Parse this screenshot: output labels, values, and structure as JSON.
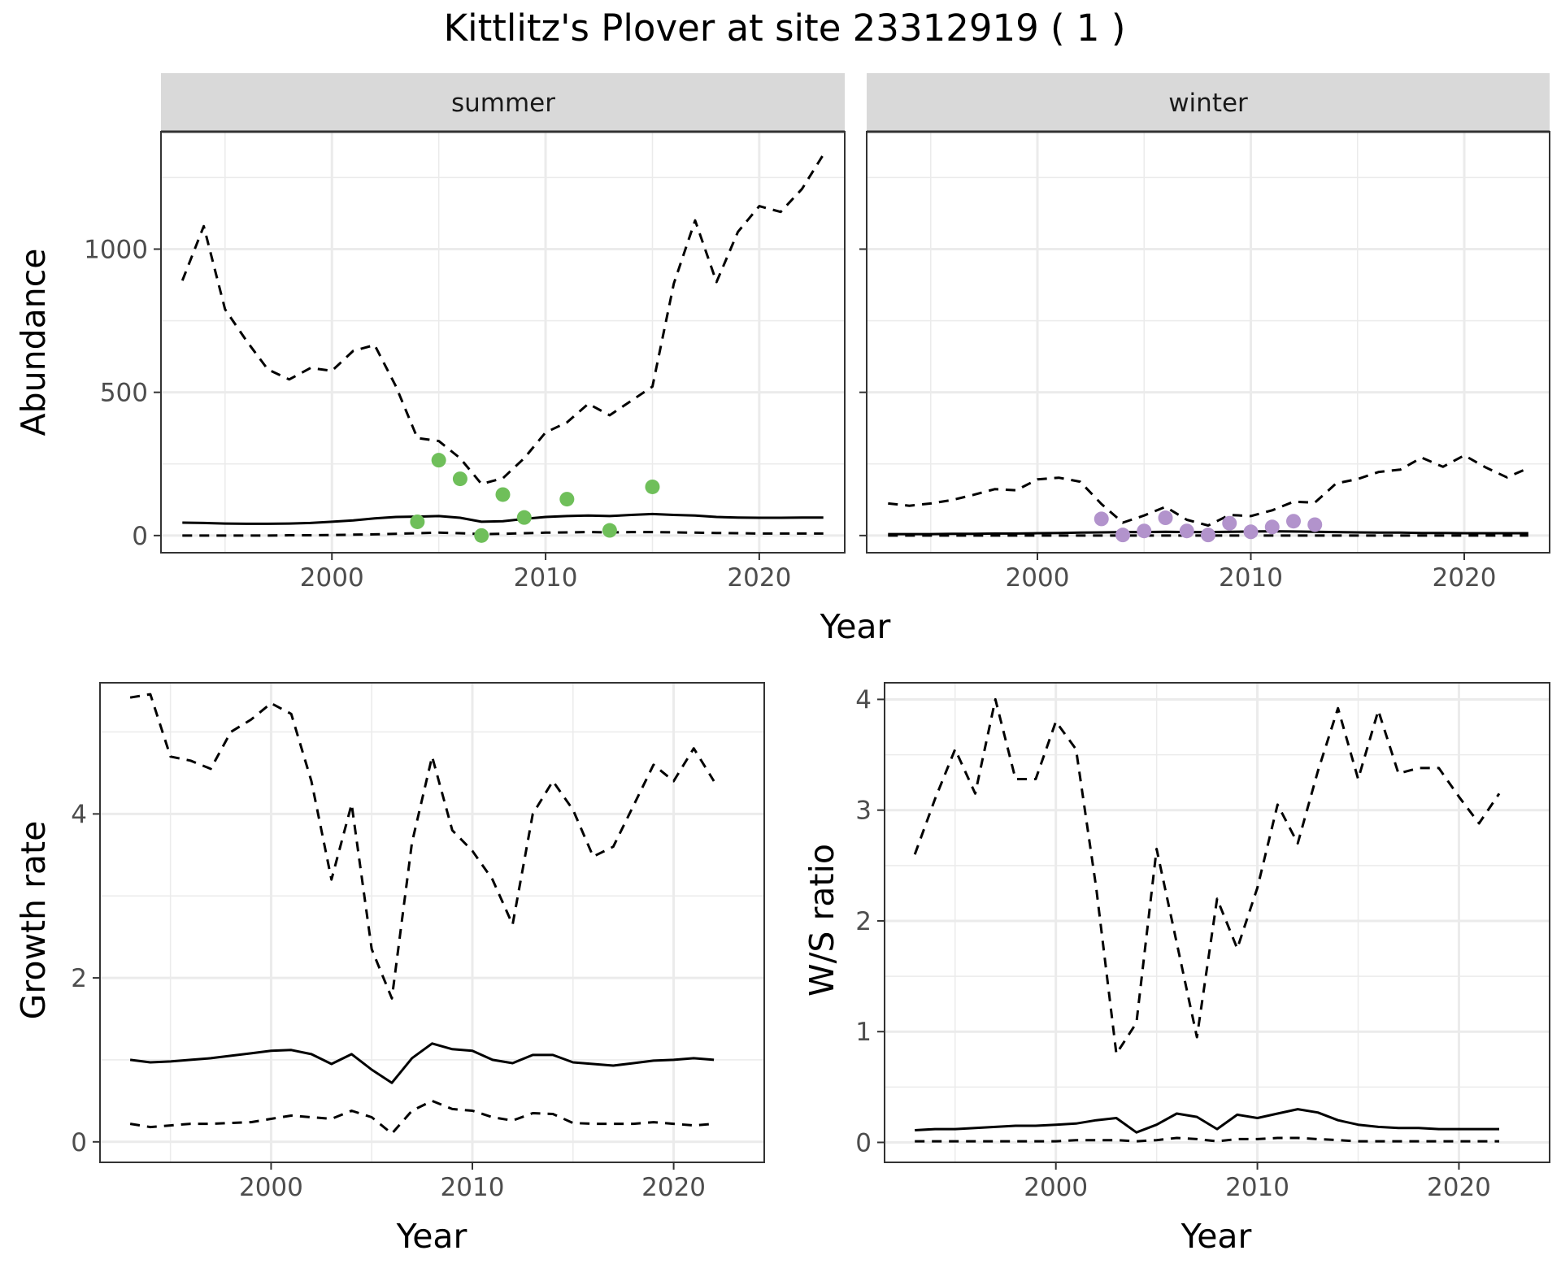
{
  "title": "Kittlitz's Plover at site 23312919 ( 1 )",
  "colors": {
    "summer_points": "#6fbf5a",
    "winter_points": "#b293cc",
    "line": "#000000",
    "strip_bg": "#d9d9d9",
    "grid": "#ebebeb"
  },
  "chart_data": [
    {
      "id": "abundance-summer",
      "type": "line",
      "facet": "summer",
      "xlabel": "Year",
      "ylabel": "Abundance",
      "xlim": [
        1992,
        2024
      ],
      "ylim": [
        -60,
        1410
      ],
      "xticks": [
        2000,
        2010,
        2020
      ],
      "yticks": [
        0,
        500,
        1000
      ],
      "grid": true,
      "x": [
        1993,
        1994,
        1995,
        1996,
        1997,
        1998,
        1999,
        2000,
        2001,
        2002,
        2003,
        2004,
        2005,
        2006,
        2007,
        2008,
        2009,
        2010,
        2011,
        2012,
        2013,
        2014,
        2015,
        2016,
        2017,
        2018,
        2019,
        2020,
        2021,
        2022,
        2023
      ],
      "series": [
        {
          "style": "dashed",
          "values": [
            890,
            1080,
            790,
            680,
            580,
            545,
            585,
            575,
            645,
            665,
            520,
            340,
            330,
            270,
            180,
            200,
            270,
            360,
            395,
            460,
            420,
            470,
            520,
            880,
            1100,
            885,
            1060,
            1150,
            1130,
            1210,
            1330
          ]
        },
        {
          "style": "solid",
          "values": [
            45,
            44,
            42,
            41,
            41,
            42,
            44,
            48,
            53,
            60,
            65,
            66,
            68,
            62,
            48,
            50,
            58,
            65,
            68,
            70,
            68,
            72,
            75,
            72,
            70,
            65,
            63,
            62,
            62,
            63,
            63
          ]
        },
        {
          "style": "dashed",
          "values": [
            0,
            0,
            0,
            0,
            0,
            1,
            1,
            2,
            3,
            4,
            6,
            8,
            10,
            8,
            5,
            6,
            8,
            10,
            11,
            12,
            11,
            12,
            12,
            11,
            10,
            9,
            8,
            7,
            7,
            7,
            7
          ]
        }
      ],
      "points": {
        "x": [
          2004,
          2005,
          2006,
          2007,
          2008,
          2009,
          2011,
          2013,
          2015
        ],
        "values": [
          48,
          263,
          198,
          0,
          143,
          63,
          127,
          18,
          170
        ]
      }
    },
    {
      "id": "abundance-winter",
      "type": "line",
      "facet": "winter",
      "xlabel": "Year",
      "ylabel": "Abundance",
      "xlim": [
        1992,
        2024
      ],
      "ylim": [
        -60,
        1410
      ],
      "xticks": [
        2000,
        2010,
        2020
      ],
      "yticks": [
        0,
        500,
        1000
      ],
      "grid": true,
      "x": [
        1993,
        1994,
        1995,
        1996,
        1997,
        1998,
        1999,
        2000,
        2001,
        2002,
        2003,
        2004,
        2005,
        2006,
        2007,
        2008,
        2009,
        2010,
        2011,
        2012,
        2013,
        2014,
        2015,
        2016,
        2017,
        2018,
        2019,
        2020,
        2021,
        2022,
        2023
      ],
      "series": [
        {
          "style": "dashed",
          "values": [
            112,
            104,
            112,
            124,
            142,
            162,
            158,
            196,
            202,
            188,
            110,
            45,
            70,
            100,
            55,
            35,
            72,
            68,
            88,
            118,
            115,
            182,
            197,
            222,
            230,
            272,
            240,
            280,
            238,
            203,
            235
          ]
        },
        {
          "style": "solid",
          "values": [
            5,
            5,
            5,
            6,
            6,
            7,
            7,
            8,
            9,
            10,
            11,
            12,
            12,
            13,
            12,
            12,
            13,
            14,
            15,
            14,
            13,
            12,
            11,
            10,
            10,
            9,
            9,
            8,
            8,
            8,
            8
          ]
        },
        {
          "style": "dashed",
          "values": [
            0,
            0,
            0,
            0,
            0,
            0,
            0,
            0,
            0,
            0,
            0,
            0,
            0,
            0,
            0,
            0,
            0,
            0,
            0,
            0,
            0,
            0,
            0,
            0,
            0,
            0,
            0,
            0,
            0,
            0,
            0
          ]
        }
      ],
      "points": {
        "x": [
          2003,
          2004,
          2005,
          2006,
          2007,
          2008,
          2009,
          2010,
          2011,
          2012,
          2013
        ],
        "values": [
          58,
          2,
          16,
          62,
          16,
          2,
          43,
          13,
          30,
          50,
          38
        ]
      }
    },
    {
      "id": "growth-rate",
      "type": "line",
      "xlabel": "Year",
      "ylabel": "Growth rate",
      "xlim": [
        1991.5,
        2024.5
      ],
      "ylim": [
        -0.25,
        5.6
      ],
      "xticks": [
        2000,
        2010,
        2020
      ],
      "yticks": [
        0,
        2,
        4
      ],
      "grid": true,
      "x": [
        1993,
        1994,
        1995,
        1996,
        1997,
        1998,
        1999,
        2000,
        2001,
        2002,
        2003,
        2004,
        2005,
        2006,
        2007,
        2008,
        2009,
        2010,
        2011,
        2012,
        2013,
        2014,
        2015,
        2016,
        2017,
        2018,
        2019,
        2020,
        2021,
        2022
      ],
      "series": [
        {
          "style": "dashed",
          "values": [
            5.42,
            5.46,
            4.7,
            4.65,
            4.55,
            5.0,
            5.15,
            5.35,
            5.22,
            4.4,
            3.2,
            4.12,
            2.35,
            1.75,
            3.65,
            4.7,
            3.8,
            3.55,
            3.2,
            2.65,
            4.0,
            4.4,
            4.05,
            3.48,
            3.6,
            4.1,
            4.6,
            4.4,
            4.8,
            4.4
          ]
        },
        {
          "style": "solid",
          "values": [
            1.0,
            0.97,
            0.98,
            1.0,
            1.02,
            1.05,
            1.08,
            1.11,
            1.12,
            1.07,
            0.95,
            1.07,
            0.88,
            0.72,
            1.02,
            1.2,
            1.13,
            1.11,
            1.0,
            0.96,
            1.06,
            1.06,
            0.97,
            0.95,
            0.93,
            0.96,
            0.99,
            1.0,
            1.02,
            1.0
          ]
        },
        {
          "style": "dashed",
          "values": [
            0.22,
            0.18,
            0.2,
            0.22,
            0.22,
            0.23,
            0.24,
            0.28,
            0.32,
            0.3,
            0.28,
            0.38,
            0.3,
            0.1,
            0.38,
            0.5,
            0.4,
            0.38,
            0.3,
            0.26,
            0.35,
            0.34,
            0.23,
            0.22,
            0.22,
            0.22,
            0.24,
            0.22,
            0.2,
            0.22
          ]
        }
      ]
    },
    {
      "id": "ws-ratio",
      "type": "line",
      "xlabel": "Year",
      "ylabel": "W/S ratio",
      "xlim": [
        1991.5,
        2024.5
      ],
      "ylim": [
        -0.18,
        4.15
      ],
      "xticks": [
        2000,
        2010,
        2020
      ],
      "yticks": [
        0,
        1,
        2,
        3,
        4
      ],
      "grid": true,
      "x": [
        1993,
        1994,
        1995,
        1996,
        1997,
        1998,
        1999,
        2000,
        2001,
        2002,
        2003,
        2004,
        2005,
        2006,
        2007,
        2008,
        2009,
        2010,
        2011,
        2012,
        2013,
        2014,
        2015,
        2016,
        2017,
        2018,
        2019,
        2020,
        2021,
        2022
      ],
      "series": [
        {
          "style": "dashed",
          "values": [
            2.6,
            3.1,
            3.55,
            3.15,
            4.0,
            3.28,
            3.28,
            3.8,
            3.55,
            2.3,
            0.8,
            1.08,
            2.65,
            1.8,
            0.95,
            2.2,
            1.75,
            2.3,
            3.05,
            2.7,
            3.35,
            3.92,
            3.28,
            3.9,
            3.33,
            3.38,
            3.38,
            3.12,
            2.88,
            3.15
          ]
        },
        {
          "style": "solid",
          "values": [
            0.11,
            0.12,
            0.12,
            0.13,
            0.14,
            0.15,
            0.15,
            0.16,
            0.17,
            0.2,
            0.22,
            0.09,
            0.16,
            0.26,
            0.23,
            0.12,
            0.25,
            0.22,
            0.26,
            0.3,
            0.27,
            0.2,
            0.16,
            0.14,
            0.13,
            0.13,
            0.12,
            0.12,
            0.12,
            0.12
          ]
        },
        {
          "style": "dashed",
          "values": [
            0.01,
            0.01,
            0.01,
            0.01,
            0.01,
            0.01,
            0.01,
            0.01,
            0.02,
            0.02,
            0.02,
            0.01,
            0.02,
            0.04,
            0.03,
            0.01,
            0.03,
            0.03,
            0.04,
            0.04,
            0.03,
            0.02,
            0.01,
            0.01,
            0.01,
            0.01,
            0.01,
            0.01,
            0.01,
            0.01
          ]
        }
      ]
    }
  ]
}
